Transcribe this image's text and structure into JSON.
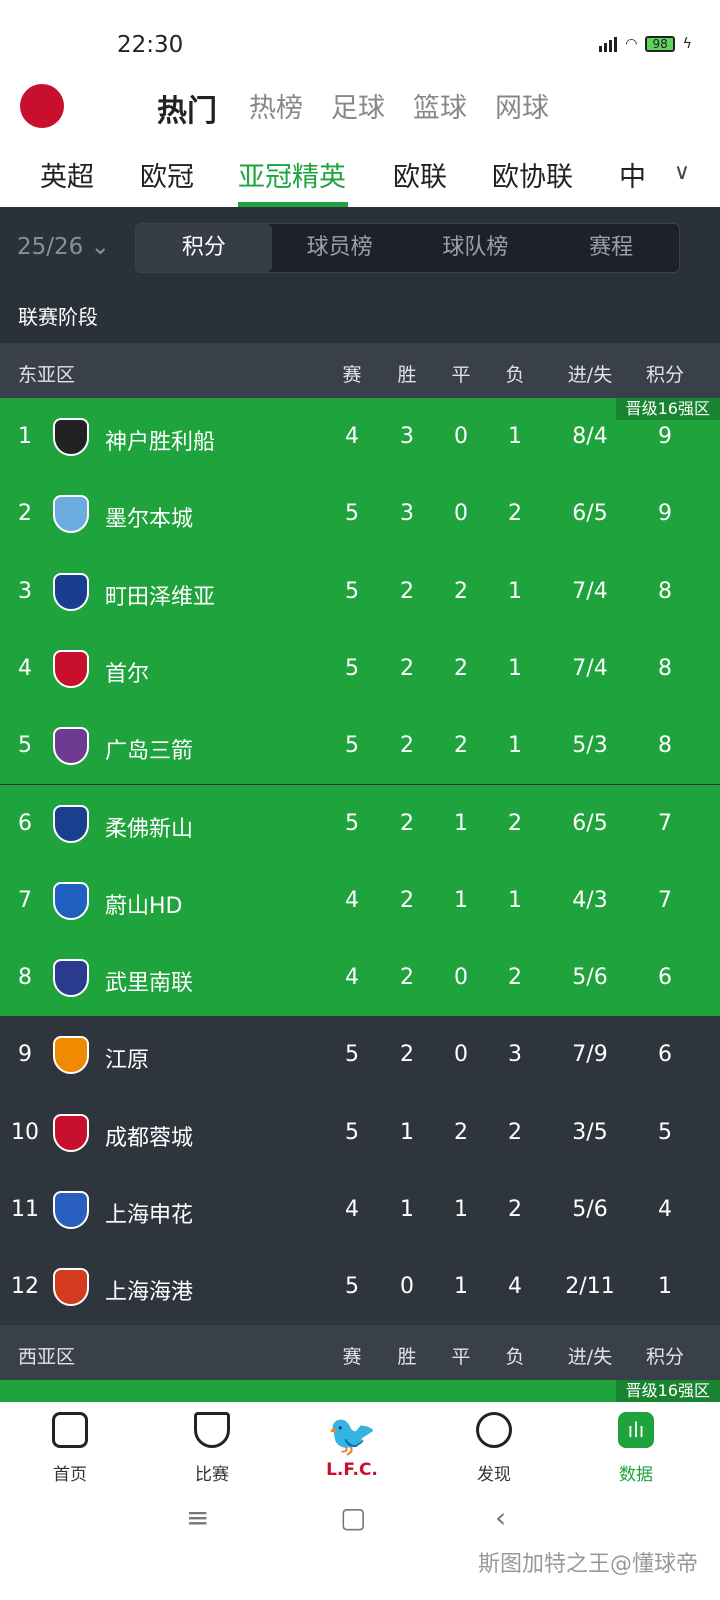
{
  "status_bar": {
    "time": "22:30",
    "battery": "98"
  },
  "top_tabs": [
    "热门",
    "热榜",
    "足球",
    "篮球",
    "网球"
  ],
  "league_tabs": [
    "英超",
    "欧冠",
    "亚冠精英",
    "欧联",
    "欧协联",
    "中"
  ],
  "active_league": "亚冠精英",
  "season": "25/26",
  "segments": [
    "积分",
    "球员榜",
    "球队榜",
    "赛程"
  ],
  "stage_title": "联赛阶段",
  "columns": [
    "赛",
    "胜",
    "平",
    "负",
    "进/失",
    "积分"
  ],
  "zones": [
    {
      "name": "东亚区",
      "badge": "晋级16强区",
      "rows": [
        {
          "rank": "1",
          "team": "神户胜利船",
          "p": "4",
          "w": "3",
          "d": "0",
          "l": "1",
          "gf_ga": "8/4",
          "pts": "9",
          "color": "#222"
        },
        {
          "rank": "2",
          "team": "墨尔本城",
          "p": "5",
          "w": "3",
          "d": "0",
          "l": "2",
          "gf_ga": "6/5",
          "pts": "9",
          "color": "#6cabdd"
        },
        {
          "rank": "3",
          "team": "町田泽维亚",
          "p": "5",
          "w": "2",
          "d": "2",
          "l": "1",
          "gf_ga": "7/4",
          "pts": "8",
          "color": "#1a3d8f"
        },
        {
          "rank": "4",
          "team": "首尔",
          "p": "5",
          "w": "2",
          "d": "2",
          "l": "1",
          "gf_ga": "7/4",
          "pts": "8",
          "color": "#c8102e"
        },
        {
          "rank": "5",
          "team": "广岛三箭",
          "p": "5",
          "w": "2",
          "d": "2",
          "l": "1",
          "gf_ga": "5/3",
          "pts": "8",
          "color": "#6f3b92"
        },
        {
          "rank": "6",
          "team": "柔佛新山",
          "p": "5",
          "w": "2",
          "d": "1",
          "l": "2",
          "gf_ga": "6/5",
          "pts": "7",
          "color": "#1b3f8f"
        },
        {
          "rank": "7",
          "team": "蔚山HD",
          "p": "4",
          "w": "2",
          "d": "1",
          "l": "1",
          "gf_ga": "4/3",
          "pts": "7",
          "color": "#1f5fbf"
        },
        {
          "rank": "8",
          "team": "武里南联",
          "p": "4",
          "w": "2",
          "d": "0",
          "l": "2",
          "gf_ga": "5/6",
          "pts": "6",
          "color": "#2a3a8f"
        },
        {
          "rank": "9",
          "team": "江原",
          "p": "5",
          "w": "2",
          "d": "0",
          "l": "3",
          "gf_ga": "7/9",
          "pts": "6",
          "color": "#f08a00"
        },
        {
          "rank": "10",
          "team": "成都蓉城",
          "p": "5",
          "w": "1",
          "d": "2",
          "l": "2",
          "gf_ga": "3/5",
          "pts": "5",
          "color": "#c8102e"
        },
        {
          "rank": "11",
          "team": "上海申花",
          "p": "4",
          "w": "1",
          "d": "1",
          "l": "2",
          "gf_ga": "5/6",
          "pts": "4",
          "color": "#2a5fbf"
        },
        {
          "rank": "12",
          "team": "上海海港",
          "p": "5",
          "w": "0",
          "d": "1",
          "l": "4",
          "gf_ga": "2/11",
          "pts": "1",
          "color": "#d33b1e"
        }
      ]
    },
    {
      "name": "西亚区",
      "badge": "晋级16强区"
    }
  ],
  "bottom_nav": [
    "首页",
    "比赛",
    "L.F.C.",
    "发现",
    "数据"
  ],
  "watermark": "斯图加特之王@懂球帝",
  "colors": {
    "accent": "#1fa33c",
    "qualify_row": "#1fa33c",
    "row_dark": "#2f353d"
  }
}
